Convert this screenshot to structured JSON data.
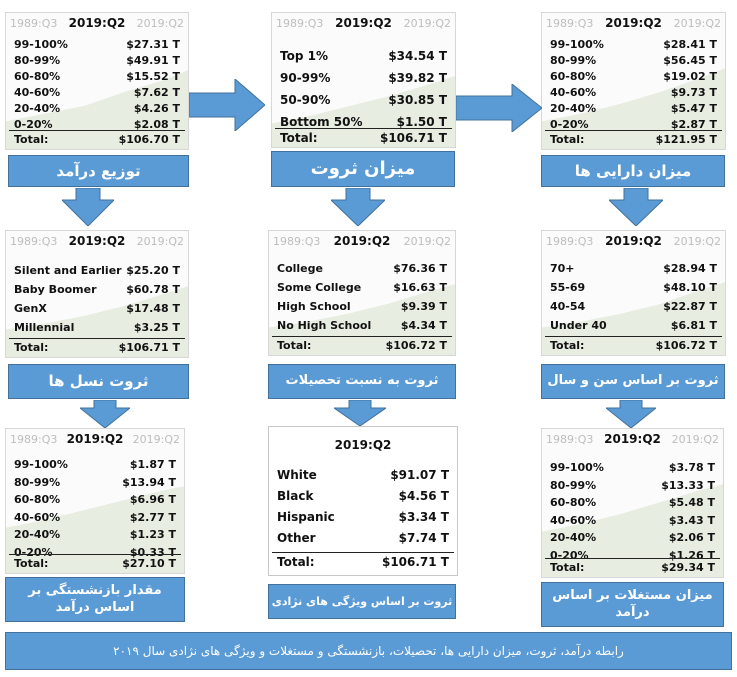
{
  "panels": {
    "income": {
      "q_left": "1989:Q3",
      "q_mid": "2019:Q2",
      "q_right": "2019:Q2",
      "rows": [
        {
          "label": "99-100%",
          "value": "$27.31 T"
        },
        {
          "label": "80-99%",
          "value": "$49.91 T"
        },
        {
          "label": "60-80%",
          "value": "$15.52 T"
        },
        {
          "label": "40-60%",
          "value": "$7.62 T"
        },
        {
          "label": "20-40%",
          "value": "$4.26 T"
        },
        {
          "label": "0-20%",
          "value": "$2.08 T"
        }
      ],
      "total_label": "Total:",
      "total_value": "$106.70 T"
    },
    "wealth": {
      "q_left": "1989:Q3",
      "q_mid": "2019:Q2",
      "q_right": "2019:Q2",
      "rows": [
        {
          "label": "Top 1%",
          "value": "$34.54 T"
        },
        {
          "label": "90-99%",
          "value": "$39.82 T"
        },
        {
          "label": "50-90%",
          "value": "$30.85 T"
        },
        {
          "label": "Bottom 50%",
          "value": "$1.50 T"
        }
      ],
      "total_label": "Total:",
      "total_value": "$106.71 T"
    },
    "assets": {
      "q_left": "1989:Q3",
      "q_mid": "2019:Q2",
      "q_right": "2019:Q2",
      "rows": [
        {
          "label": "99-100%",
          "value": "$28.41 T"
        },
        {
          "label": "80-99%",
          "value": "$56.45 T"
        },
        {
          "label": "60-80%",
          "value": "$19.02 T"
        },
        {
          "label": "40-60%",
          "value": "$9.73 T"
        },
        {
          "label": "20-40%",
          "value": "$5.47 T"
        },
        {
          "label": "0-20%",
          "value": "$2.87 T"
        }
      ],
      "total_label": "Total:",
      "total_value": "$121.95 T"
    },
    "generations": {
      "q_left": "1989:Q3",
      "q_mid": "2019:Q2",
      "q_right": "2019:Q2",
      "rows": [
        {
          "label": "Silent and Earlier",
          "value": "$25.20 T"
        },
        {
          "label": "Baby Boomer",
          "value": "$60.78 T"
        },
        {
          "label": "GenX",
          "value": "$17.48 T"
        },
        {
          "label": "Millennial",
          "value": "$3.25 T"
        }
      ],
      "total_label": "Total:",
      "total_value": "$106.71 T"
    },
    "education": {
      "q_left": "1989:Q3",
      "q_mid": "2019:Q2",
      "q_right": "2019:Q2",
      "rows": [
        {
          "label": "College",
          "value": "$76.36 T"
        },
        {
          "label": "Some College",
          "value": "$16.63 T"
        },
        {
          "label": "High School",
          "value": "$9.39 T"
        },
        {
          "label": "No High School",
          "value": "$4.34 T"
        }
      ],
      "total_label": "Total:",
      "total_value": "$106.72 T"
    },
    "age": {
      "q_left": "1989:Q3",
      "q_mid": "2019:Q2",
      "q_right": "2019:Q2",
      "rows": [
        {
          "label": "70+",
          "value": "$28.94 T"
        },
        {
          "label": "55-69",
          "value": "$48.10 T"
        },
        {
          "label": "40-54",
          "value": "$22.87 T"
        },
        {
          "label": "Under 40",
          "value": "$6.81 T"
        }
      ],
      "total_label": "Total:",
      "total_value": "$106.72 T"
    },
    "pension": {
      "q_left": "1989:Q3",
      "q_mid": "2019:Q2",
      "q_right": "2019:Q2",
      "rows": [
        {
          "label": "99-100%",
          "value": "$1.87 T"
        },
        {
          "label": "80-99%",
          "value": "$13.94 T"
        },
        {
          "label": "60-80%",
          "value": "$6.96 T"
        },
        {
          "label": "40-60%",
          "value": "$2.77 T"
        },
        {
          "label": "20-40%",
          "value": "$1.23 T"
        },
        {
          "label": "0-20%",
          "value": "$0.33 T"
        }
      ],
      "total_label": "Total:",
      "total_value": "$27.10 T"
    },
    "race": {
      "q_mid": "2019:Q2",
      "rows": [
        {
          "label": "White",
          "value": "$91.07 T"
        },
        {
          "label": "Black",
          "value": "$4.56 T"
        },
        {
          "label": "Hispanic",
          "value": "$3.34 T"
        },
        {
          "label": "Other",
          "value": "$7.74 T"
        }
      ],
      "total_label": "Total:",
      "total_value": "$106.71 T"
    },
    "realestate": {
      "q_left": "1989:Q3",
      "q_mid": "2019:Q2",
      "q_right": "2019:Q2",
      "rows": [
        {
          "label": "99-100%",
          "value": "$3.78 T"
        },
        {
          "label": "80-99%",
          "value": "$13.33 T"
        },
        {
          "label": "60-80%",
          "value": "$5.48 T"
        },
        {
          "label": "40-60%",
          "value": "$3.43 T"
        },
        {
          "label": "20-40%",
          "value": "$2.06 T"
        },
        {
          "label": "0-20%",
          "value": "$1.26 T"
        }
      ],
      "total_label": "Total:",
      "total_value": "$29.34 T"
    }
  },
  "labels": {
    "income": "توزیع درآمد",
    "wealth": "میزان ثروت",
    "assets": "میزان دارایی ها",
    "generations": "ثروت نسل ها",
    "education": "ثروت به نسبت تحصیلات",
    "age": "ثروت بر اساس سن و سال",
    "pension": "مقدار بازنشستگی بر اساس درآمد",
    "race": "ثروت بر اساس ویژگی های نژادی",
    "realestate": "میزان مستغلات بر اساس درآمد",
    "footer": "رابطه درآمد، ثروت، میزان دارایی ها، تحصیلات، بازنشستگی و مستغلات و ویژگی های نژادی سال ۲۰۱۹"
  },
  "colors": {
    "label_fill": "#5b9bd5",
    "label_border": "#41719c",
    "arrow_fill": "#5b9bd5",
    "area_fill": "#e6ebdf"
  }
}
